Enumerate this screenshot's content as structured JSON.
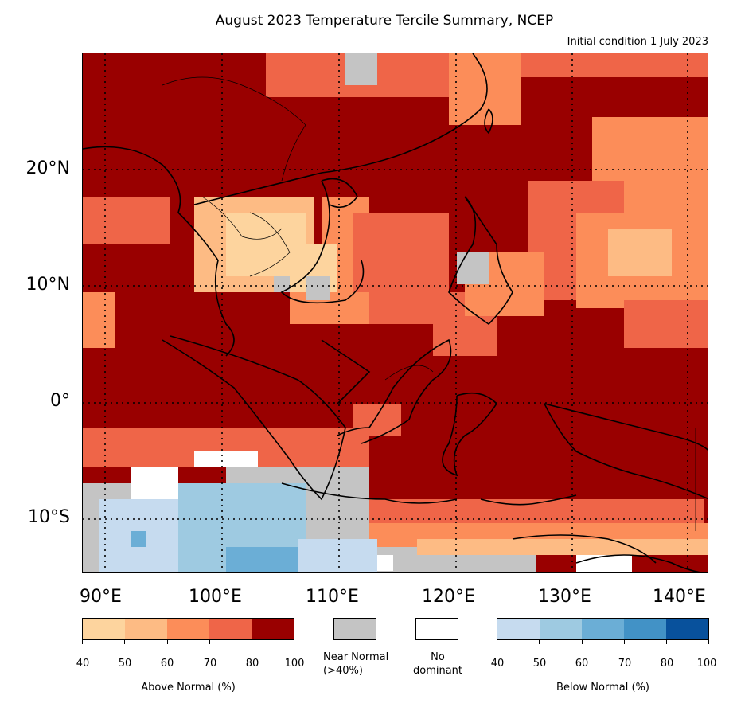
{
  "title": "August 2023 Temperature Tercile Summary, NCEP",
  "subtitle": "Initial condition 1 July 2023",
  "axes": {
    "lat_labels": [
      "20°N",
      "10°N",
      "0°",
      "10°S"
    ],
    "lon_labels": [
      "90°E",
      "100°E",
      "110°E",
      "120°E",
      "130°E",
      "140°E"
    ]
  },
  "legend": {
    "above_normal": {
      "label": "Above Normal (%)",
      "ticks": [
        "40",
        "50",
        "60",
        "70",
        "80",
        "100"
      ],
      "colors": [
        "#fdd49e",
        "#fdbb84",
        "#fc8d59",
        "#ef6548",
        "#990000"
      ]
    },
    "near_normal": {
      "label_line1": "Near Normal",
      "label_line2": "(>40%)",
      "color": "#c4c4c4"
    },
    "no_dominant": {
      "label_line1": "No",
      "label_line2": "dominant",
      "color": "#ffffff"
    },
    "below_normal": {
      "label": "Below Normal (%)",
      "ticks": [
        "40",
        "50",
        "60",
        "70",
        "80",
        "100"
      ],
      "colors": [
        "#c6dbef",
        "#9ecae1",
        "#6baed6",
        "#4292c6",
        "#08519c"
      ]
    }
  },
  "map": {
    "background_color": "#990000",
    "grid_style": "dotted"
  }
}
